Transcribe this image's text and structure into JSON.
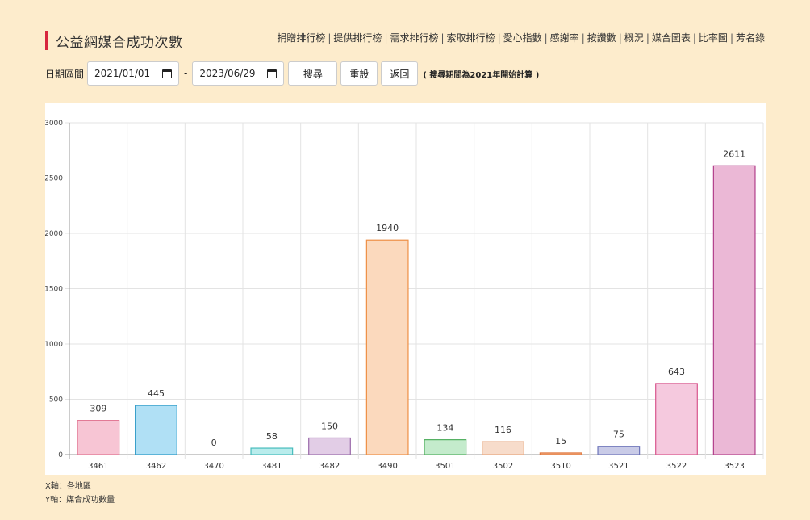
{
  "header": {
    "title": "公益網媒合成功次數",
    "nav": [
      "捐贈排行榜",
      "提供排行榜",
      "需求排行榜",
      "索取排行榜",
      "愛心指數",
      "感謝率",
      "按讚數",
      "概況",
      "媒合圖表",
      "比率圖",
      "芳名錄"
    ]
  },
  "filter": {
    "label": "日期區間",
    "start": "2021/01/01",
    "end": "2023/06/29",
    "separator": "-",
    "search_label": "搜尋",
    "reset_label": "重設",
    "back_label": "返回",
    "note": "( 搜尋期間為2021年開始計算 )"
  },
  "footer": {
    "x_note": "X軸：各地區",
    "y_note": "Y軸：媒合成功數量"
  },
  "colors": {
    "background": "#fdeccc",
    "title_accent": "#d7263d"
  },
  "chart_data": {
    "type": "bar",
    "title": "",
    "xlabel": "",
    "ylabel": "",
    "categories": [
      "3461",
      "3462",
      "3470",
      "3481",
      "3482",
      "3490",
      "3501",
      "3502",
      "3510",
      "3521",
      "3522",
      "3523"
    ],
    "values": [
      309,
      445,
      0,
      58,
      150,
      1940,
      134,
      116,
      15,
      75,
      643,
      2611
    ],
    "ylim": [
      0,
      3000
    ],
    "yticks": [
      0,
      500,
      1000,
      1500,
      2000,
      2500,
      3000
    ],
    "grid": true,
    "data_labels": true,
    "bar_fills": [
      "#f7c5d4",
      "#b0e0f5",
      "#f1f1f1",
      "#b9ecec",
      "#e2cde6",
      "#fbd9bd",
      "#c4ebcc",
      "#f7dccb",
      "#f5b38a",
      "#c9cbe7",
      "#f5c9de",
      "#ebb8d6"
    ],
    "bar_strokes": [
      "#e0718f",
      "#2596c5",
      "#bbbbbb",
      "#47bcbc",
      "#9a6aaa",
      "#ee8f45",
      "#4fae5e",
      "#e7a57c",
      "#e0783f",
      "#6d74b9",
      "#d9558d",
      "#b2408b"
    ]
  }
}
